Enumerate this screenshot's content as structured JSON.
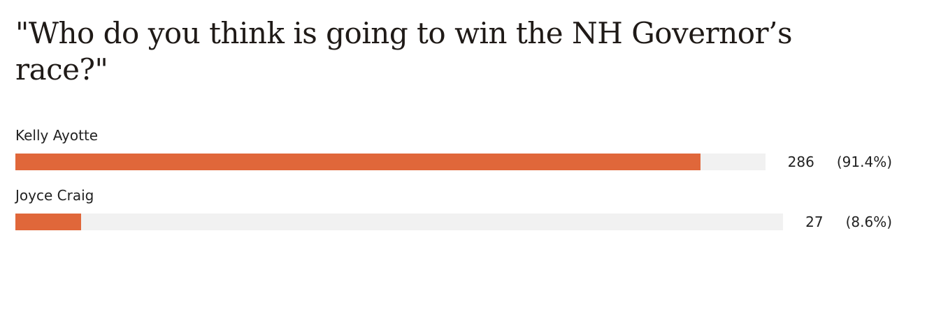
{
  "poll": {
    "question": "\"Who do you think is going to win the NH Governor’s race?\"",
    "bar_color": "#e0673a",
    "track_color": "#f1f1f1",
    "options": [
      {
        "label": "Kelly Ayotte",
        "votes": 286,
        "percent": 91.4,
        "percent_label": "(91.4%)"
      },
      {
        "label": "Joyce Craig",
        "votes": 27,
        "percent": 8.6,
        "percent_label": "(8.6%)"
      }
    ]
  }
}
